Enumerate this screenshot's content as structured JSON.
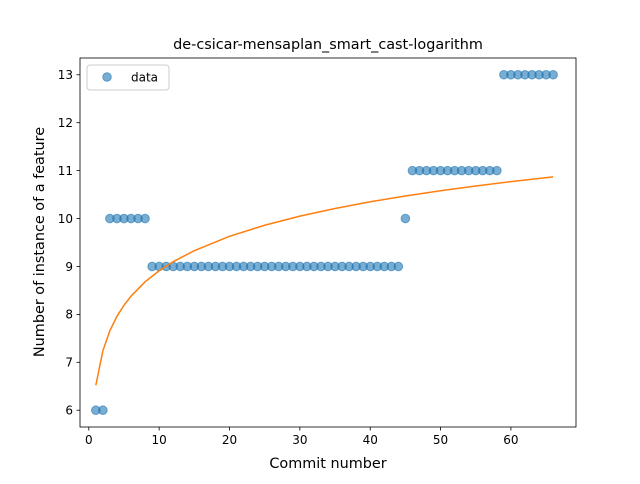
{
  "chart_data": {
    "type": "scatter",
    "title": "de-csicar-mensaplan_smart_cast-logarithm",
    "xlabel": "Commit number",
    "ylabel": "Number of instance of a feature",
    "xlim": [
      -1.25,
      69.25
    ],
    "ylim": [
      5.65,
      13.35
    ],
    "xticks": [
      0,
      10,
      20,
      30,
      40,
      50,
      60
    ],
    "yticks": [
      6,
      7,
      8,
      9,
      10,
      11,
      12,
      13
    ],
    "grid": false,
    "legend": {
      "position": "top-left",
      "entries": [
        "data"
      ]
    },
    "colors": {
      "data": "#1f77b4",
      "fit": "#ff7f0e"
    },
    "series": [
      {
        "name": "data",
        "kind": "scatter",
        "x": [
          1,
          2,
          3,
          4,
          5,
          6,
          7,
          8,
          9,
          10,
          11,
          12,
          13,
          14,
          15,
          16,
          17,
          18,
          19,
          20,
          21,
          22,
          23,
          24,
          25,
          26,
          27,
          28,
          29,
          30,
          31,
          32,
          33,
          34,
          35,
          36,
          37,
          38,
          39,
          40,
          41,
          42,
          43,
          44,
          45,
          46,
          47,
          48,
          49,
          50,
          51,
          52,
          53,
          54,
          55,
          56,
          57,
          58,
          59,
          60,
          61,
          62,
          63,
          64,
          65,
          66
        ],
        "y": [
          6,
          6,
          10,
          10,
          10,
          10,
          10,
          10,
          9,
          9,
          9,
          9,
          9,
          9,
          9,
          9,
          9,
          9,
          9,
          9,
          9,
          9,
          9,
          9,
          9,
          9,
          9,
          9,
          9,
          9,
          9,
          9,
          9,
          9,
          9,
          9,
          9,
          9,
          9,
          9,
          9,
          9,
          9,
          9,
          10,
          11,
          11,
          11,
          11,
          11,
          11,
          11,
          11,
          11,
          11,
          11,
          11,
          11,
          13,
          13,
          13,
          13,
          13,
          13,
          13,
          13
        ]
      },
      {
        "kind": "line",
        "x": [
          1,
          2,
          3,
          4,
          5,
          6,
          8,
          10,
          12,
          15,
          20,
          25,
          30,
          35,
          40,
          45,
          50,
          55,
          60,
          66
        ],
        "y": [
          6.52,
          7.24,
          7.66,
          7.96,
          8.19,
          8.38,
          8.68,
          8.91,
          9.1,
          9.33,
          9.63,
          9.86,
          10.05,
          10.21,
          10.35,
          10.47,
          10.58,
          10.68,
          10.77,
          10.87
        ]
      }
    ]
  }
}
